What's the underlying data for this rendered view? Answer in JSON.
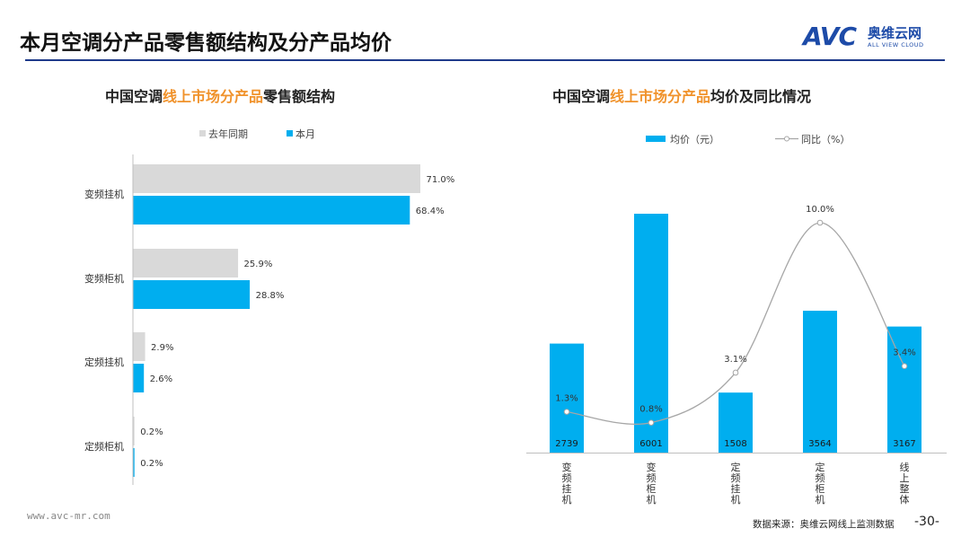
{
  "header": {
    "title": "本月空调分产品零售额结构及分产品均价",
    "logo_mark": "AVC",
    "logo_cn": "奥维云网",
    "logo_en": "ALL VIEW CLOUD"
  },
  "footer": {
    "website": "www.avc-mr.com",
    "source": "数据来源：奥维云网线上监测数据",
    "page": "-30-"
  },
  "left_title": {
    "pre": "中国空调",
    "hl": "线上市场分产品",
    "post": "零售额结构"
  },
  "right_title": {
    "pre": "中国空调",
    "hl": "线上市场分产品",
    "post": "均价及同比情况"
  },
  "colors": {
    "prev": "#d9d9d9",
    "curr": "#00aeef",
    "line": "#a6a6a6",
    "accent": "#f0922b",
    "brand": "#1d4ba8"
  },
  "chart_data": [
    {
      "type": "bar",
      "orientation": "horizontal",
      "title": "中国空调线上市场分产品零售额结构",
      "categories": [
        "变频挂机",
        "变频柜机",
        "定频挂机",
        "定频柜机"
      ],
      "series": [
        {
          "name": "去年同期",
          "values": [
            71.0,
            25.9,
            2.9,
            0.2
          ],
          "labels": [
            "71.0%",
            "25.9%",
            "2.9%",
            "0.2%"
          ]
        },
        {
          "name": "本月",
          "values": [
            68.4,
            28.8,
            2.6,
            0.2
          ],
          "labels": [
            "68.4%",
            "28.8%",
            "2.6%",
            "0.2%"
          ]
        }
      ],
      "xlim": [
        0,
        100
      ],
      "legend": "top"
    },
    {
      "type": "bar+line",
      "title": "中国空调线上市场分产品均价及同比情况",
      "categories": [
        "变频挂机",
        "变频柜机",
        "定频挂机",
        "定频柜机",
        "线上整体"
      ],
      "bar_series": {
        "name": "均价（元）",
        "values": [
          2739,
          6001,
          1508,
          3564,
          3167
        ],
        "labels": [
          "2739",
          "6001",
          "1508",
          "3564",
          "3167"
        ]
      },
      "line_series": {
        "name": "同比（%）",
        "values": [
          1.3,
          0.8,
          3.1,
          10.0,
          3.4
        ],
        "labels": [
          "1.3%",
          "0.8%",
          "3.1%",
          "10.0%",
          "3.4%"
        ]
      },
      "ylim_bar": [
        0,
        7000
      ],
      "ylim_line": [
        0,
        11
      ],
      "legend": "top"
    }
  ]
}
